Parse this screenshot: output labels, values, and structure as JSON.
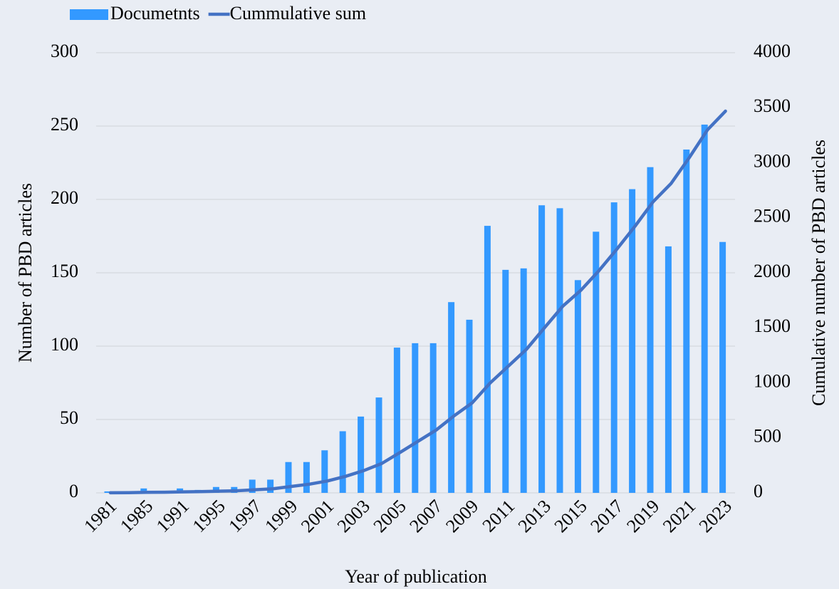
{
  "chart_data": {
    "type": "bar",
    "x_label": "Year of publication",
    "y_label": "Number of PBD articles",
    "y2_label": "Cumulative number of  PBD articles",
    "categories": [
      "1981",
      null,
      "1985",
      null,
      "1991",
      null,
      "1995",
      null,
      "1997",
      null,
      "1999",
      null,
      "2001",
      null,
      "2003",
      null,
      "2005",
      null,
      "2007",
      null,
      "2009",
      null,
      "2011",
      null,
      "2013",
      null,
      "2015",
      null,
      "2017",
      null,
      "2019",
      null,
      "2021",
      null,
      "2023"
    ],
    "series": [
      {
        "name": "Documetnts",
        "type": "bar",
        "color": "#3399ff",
        "values": [
          1,
          1,
          3,
          1,
          3,
          2,
          4,
          4,
          9,
          9,
          21,
          21,
          29,
          42,
          52,
          65,
          99,
          102,
          102,
          130,
          118,
          182,
          152,
          153,
          196,
          194,
          145,
          178,
          198,
          207,
          222,
          168,
          234,
          251,
          171
        ]
      },
      {
        "name": "Cummulative sum",
        "type": "line",
        "axis": "y2",
        "color": "#4472c4",
        "values": [
          1,
          2,
          5,
          6,
          9,
          11,
          15,
          19,
          28,
          37,
          58,
          79,
          108,
          150,
          202,
          267,
          366,
          468,
          570,
          700,
          818,
          1000,
          1152,
          1305,
          1501,
          1695,
          1840,
          2018,
          2216,
          2423,
          2645,
          2813,
          3047,
          3298,
          3469
        ]
      }
    ],
    "ylim": [
      0,
      300
    ],
    "yticks": [
      0,
      50,
      100,
      150,
      200,
      250,
      300
    ],
    "y2lim": [
      0,
      4000
    ],
    "y2ticks": [
      0,
      500,
      1000,
      1500,
      2000,
      2500,
      3000,
      3500,
      4000
    ],
    "grid": true,
    "legend": "top-left"
  }
}
